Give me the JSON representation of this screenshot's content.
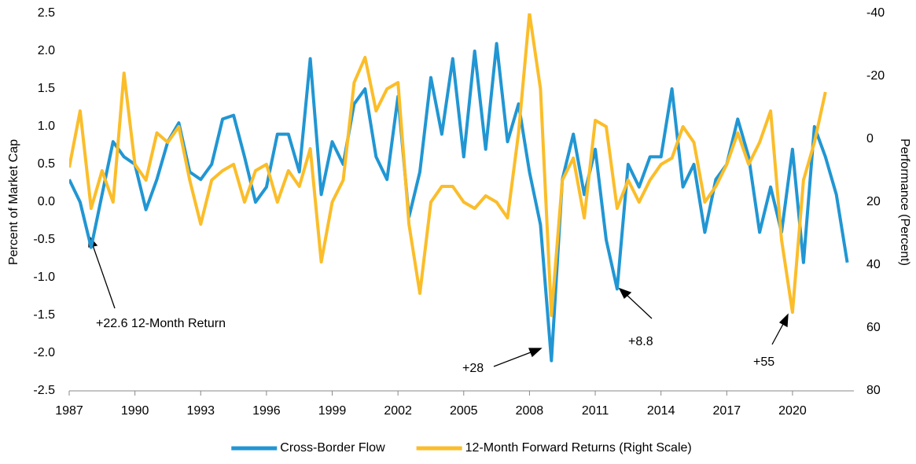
{
  "chart_data": {
    "type": "line",
    "x": [
      1987,
      1987.5,
      1988,
      1988.5,
      1989,
      1989.5,
      1990,
      1990.5,
      1991,
      1991.5,
      1992,
      1992.5,
      1993,
      1993.5,
      1994,
      1994.5,
      1995,
      1995.5,
      1996,
      1996.5,
      1997,
      1997.5,
      1998,
      1998.5,
      1999,
      1999.5,
      2000,
      2000.5,
      2001,
      2001.5,
      2002,
      2002.5,
      2003,
      2003.5,
      2004,
      2004.5,
      2005,
      2005.5,
      2006,
      2006.5,
      2007,
      2007.5,
      2008,
      2008.5,
      2009,
      2009.5,
      2010,
      2010.5,
      2011,
      2011.5,
      2012,
      2012.5,
      2013,
      2013.5,
      2014,
      2014.5,
      2015,
      2015.5,
      2016,
      2016.5,
      2017,
      2017.5,
      2018,
      2018.5,
      2019,
      2019.5,
      2020,
      2020.5,
      2021,
      2021.5,
      2022,
      2022.5
    ],
    "series": [
      {
        "name": "Cross-Border Flow",
        "color": "#2196d3",
        "axis": "y",
        "values": [
          0.3,
          0.0,
          -0.6,
          0.1,
          0.8,
          0.6,
          0.5,
          -0.1,
          0.3,
          0.8,
          1.05,
          0.4,
          0.3,
          0.5,
          1.1,
          1.15,
          0.6,
          0.0,
          0.2,
          0.9,
          0.9,
          0.4,
          1.9,
          0.1,
          0.8,
          0.5,
          1.3,
          1.5,
          0.6,
          0.3,
          1.4,
          -0.2,
          0.4,
          1.65,
          0.9,
          1.9,
          0.6,
          2.0,
          0.7,
          2.1,
          0.8,
          1.3,
          0.4,
          -0.3,
          -2.1,
          0.3,
          0.9,
          0.1,
          0.7,
          -0.5,
          -1.15,
          0.5,
          0.2,
          0.6,
          0.6,
          1.5,
          0.2,
          0.5,
          -0.4,
          0.3,
          0.5,
          1.1,
          0.6,
          -0.4,
          0.2,
          -0.4,
          0.7,
          -0.8,
          1.0,
          0.6,
          0.1,
          -0.8
        ]
      },
      {
        "name": "12-Month Forward Returns (Right Scale)",
        "color": "#fbbd29",
        "axis": "y2",
        "values": [
          9,
          -9,
          22,
          10,
          20,
          -21,
          8,
          13,
          -2,
          1,
          -4,
          13,
          27,
          13,
          10,
          8,
          20,
          10,
          8,
          20,
          10,
          15,
          3,
          39,
          20,
          13,
          -18,
          -26,
          -9,
          -16,
          -18,
          27,
          49,
          20,
          15,
          15,
          20,
          22,
          18,
          20,
          25,
          -2,
          -40,
          -16,
          56,
          13,
          6,
          25,
          -6,
          -4,
          22,
          13,
          20,
          13,
          8,
          6,
          -4,
          1,
          20,
          15,
          8,
          -2,
          8,
          1,
          -9,
          32,
          55,
          13,
          1,
          -15,
          null,
          null
        ]
      }
    ],
    "ylabel": "Percent of Market Cap",
    "y2label": "Performance (Percent)",
    "xlim": [
      1987,
      2022.8
    ],
    "xticks": [
      1987,
      1990,
      1993,
      1996,
      1999,
      2002,
      2005,
      2008,
      2011,
      2014,
      2017,
      2020
    ],
    "ylim": [
      -2.5,
      2.5
    ],
    "yticks": [
      -2.5,
      {
        "value": -2,
        "label": "-2.0"
      },
      -1.5,
      {
        "value": -1,
        "label": "-1.0"
      },
      -0.5,
      {
        "value": 0,
        "label": "0.0"
      },
      0.5,
      {
        "value": 1,
        "label": "1.0"
      },
      1.5,
      {
        "value": 2,
        "label": "2.0"
      },
      2.5
    ],
    "y2lim": [
      80,
      -40
    ],
    "y2ticks": [
      80,
      60,
      40,
      20,
      0,
      -20,
      -40
    ],
    "annotations": [
      "+22.6 12-Month Return",
      "+28",
      "+8.8",
      "+55"
    ],
    "legend": "bottom"
  }
}
